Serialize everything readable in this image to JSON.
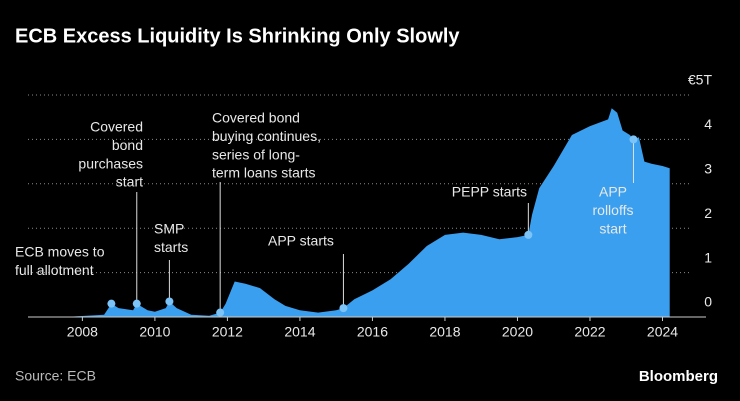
{
  "chart_data": {
    "type": "area",
    "title": "ECB Excess Liquidity Is Shrinking Only Slowly",
    "source": "Source: ECB",
    "brand": "Bloomberg",
    "color": "#3a9fee",
    "grid": true,
    "xlim": [
      2006.5,
      2025.2
    ],
    "xticks": [
      2008,
      2010,
      2012,
      2014,
      2016,
      2018,
      2020,
      2022,
      2024
    ],
    "ylim": [
      0,
      5
    ],
    "yticks": [
      0,
      1,
      2,
      3,
      4,
      {
        "value": 5,
        "label": "€5T"
      }
    ],
    "series": [
      {
        "name": "Excess liquidity",
        "x": [
          2006.6,
          2007.5,
          2008.6,
          2008.8,
          2009.0,
          2009.4,
          2009.5,
          2009.8,
          2010.0,
          2010.3,
          2010.4,
          2010.6,
          2011.0,
          2011.5,
          2011.8,
          2011.95,
          2012.2,
          2012.5,
          2012.9,
          2013.3,
          2013.6,
          2014.0,
          2014.5,
          2015.0,
          2015.2,
          2015.5,
          2016.0,
          2016.5,
          2017.0,
          2017.5,
          2018.0,
          2018.5,
          2019.0,
          2019.5,
          2020.0,
          2020.3,
          2020.4,
          2020.6,
          2021.0,
          2021.5,
          2022.0,
          2022.5,
          2022.6,
          2022.75,
          2022.9,
          2023.1,
          2023.2,
          2023.35,
          2023.5,
          2023.7,
          2024.0,
          2024.2
        ],
        "values": [
          0.0,
          0.0,
          0.05,
          0.3,
          0.2,
          0.15,
          0.3,
          0.15,
          0.12,
          0.2,
          0.35,
          0.2,
          0.05,
          0.03,
          0.1,
          0.3,
          0.8,
          0.75,
          0.65,
          0.4,
          0.25,
          0.15,
          0.1,
          0.15,
          0.2,
          0.4,
          0.6,
          0.85,
          1.2,
          1.6,
          1.85,
          1.9,
          1.85,
          1.75,
          1.8,
          1.85,
          2.3,
          2.9,
          3.4,
          4.1,
          4.3,
          4.45,
          4.7,
          4.6,
          4.2,
          4.1,
          4.0,
          4.05,
          3.5,
          3.45,
          3.4,
          3.35
        ]
      }
    ],
    "annotations": [
      {
        "text": [
          "ECB moves to",
          "full allotment"
        ],
        "x": 2008.8
      },
      {
        "text": [
          "Covered",
          "bond",
          "purchases",
          "start"
        ],
        "x": 2009.5
      },
      {
        "text": [
          "SMP",
          "starts"
        ],
        "x": 2010.4
      },
      {
        "text": [
          "Covered bond",
          "buying continues,",
          "series of long-",
          "term loans starts"
        ],
        "x": 2011.8
      },
      {
        "text": [
          "APP starts"
        ],
        "x": 2015.2
      },
      {
        "text": [
          "PEPP starts"
        ],
        "x": 2020.3
      },
      {
        "text": [
          "APP",
          "rolloffs",
          "start"
        ],
        "x": 2023.2
      }
    ]
  }
}
